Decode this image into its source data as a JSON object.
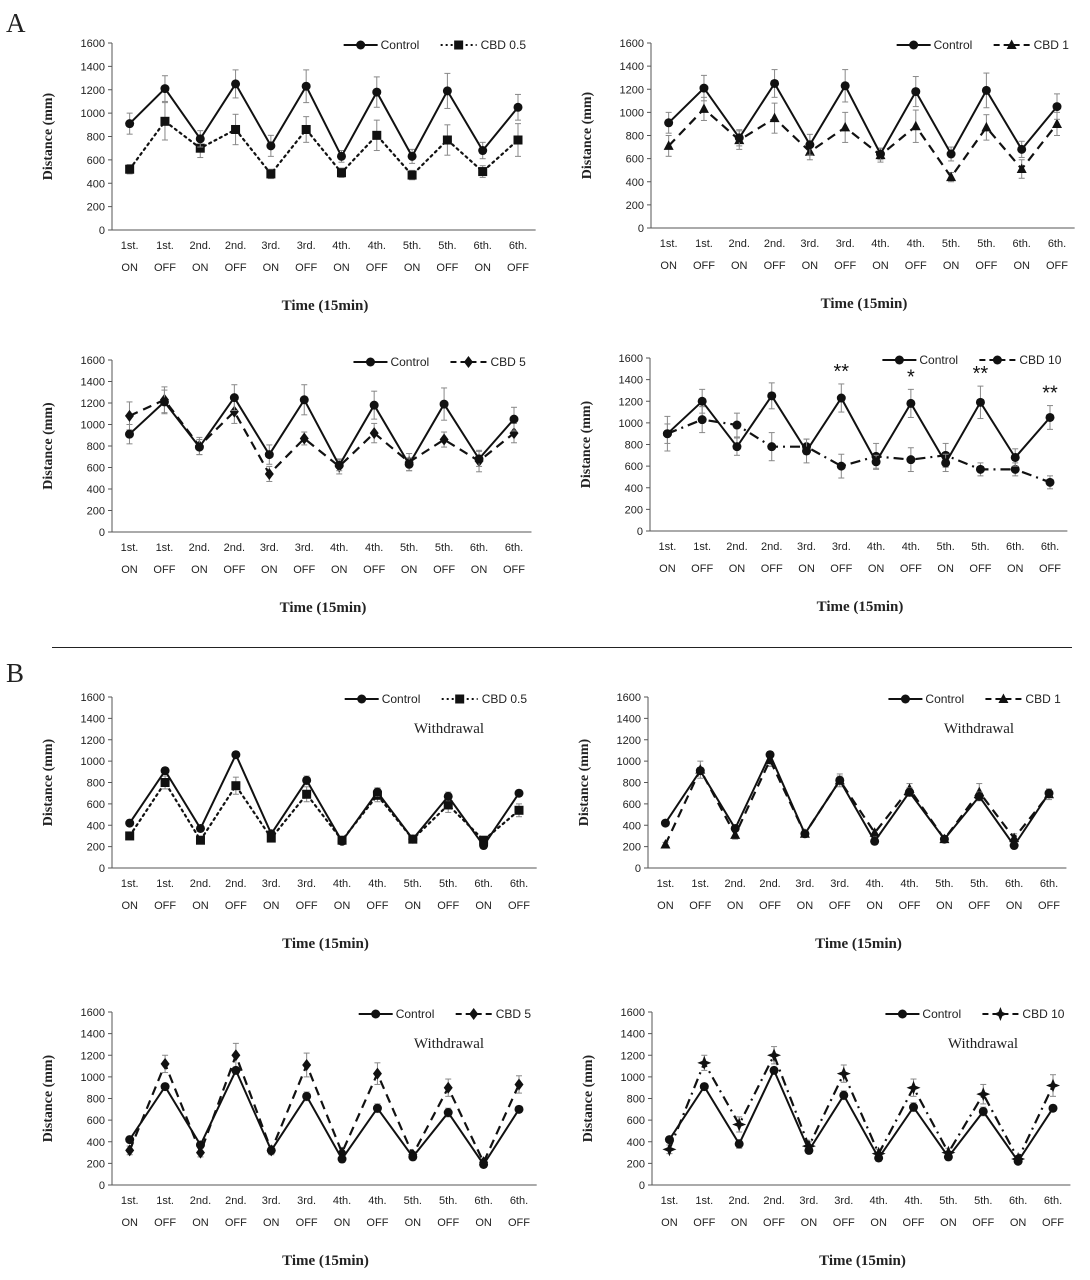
{
  "panels": {
    "A": "A",
    "B": "B"
  },
  "common": {
    "ylabel": "Distance (mm)",
    "xlabel": "Time (15min)",
    "yticks": [
      "0",
      "200",
      "400",
      "600",
      "800",
      "1000",
      "1200",
      "1400",
      "1600"
    ],
    "xticks_top": [
      "1st.",
      "1st.",
      "2nd.",
      "2nd.",
      "3rd.",
      "3rd.",
      "4th.",
      "4th.",
      "5th.",
      "5th.",
      "6th.",
      "6th."
    ],
    "xticks_bottom": [
      "ON",
      "OFF",
      "ON",
      "OFF",
      "ON",
      "OFF",
      "ON",
      "OFF",
      "ON",
      "OFF",
      "ON",
      "OFF"
    ],
    "annotation_withdrawal": "Withdrawal"
  },
  "colors": {
    "line": "#111111",
    "axis": "#555555",
    "errorbar": "#888888"
  },
  "chart_data": [
    {
      "type": "line",
      "panel": "A",
      "annotation": "",
      "categories": [
        "1st. ON",
        "1st. OFF",
        "2nd. ON",
        "2nd. OFF",
        "3rd. ON",
        "3rd. OFF",
        "4th. ON",
        "4th. OFF",
        "5th. ON",
        "5th. OFF",
        "6th. ON",
        "6th. OFF"
      ],
      "ylim": [
        0,
        1600
      ],
      "ylabel": "Distance (mm)",
      "xlabel": "Time (15min)",
      "legend": "top-right",
      "series": [
        {
          "name": "Control",
          "style": "solid",
          "marker": "circle",
          "values": [
            910,
            1210,
            780,
            1250,
            720,
            1230,
            630,
            1180,
            630,
            1190,
            680,
            1050
          ],
          "errors": [
            90,
            110,
            70,
            120,
            90,
            140,
            50,
            130,
            60,
            150,
            70,
            110
          ]
        },
        {
          "name": "CBD 0.5",
          "style": "dotted",
          "marker": "square",
          "values": [
            520,
            930,
            700,
            860,
            480,
            860,
            490,
            810,
            470,
            770,
            500,
            770
          ],
          "errors": [
            40,
            160,
            80,
            130,
            40,
            110,
            40,
            130,
            40,
            130,
            50,
            140
          ]
        }
      ],
      "significance": []
    },
    {
      "type": "line",
      "panel": "A",
      "annotation": "",
      "categories": [
        "1st. ON",
        "1st. OFF",
        "2nd. ON",
        "2nd. OFF",
        "3rd. ON",
        "3rd. OFF",
        "4th. ON",
        "4th. OFF",
        "5th. ON",
        "5th. OFF",
        "6th. ON",
        "6th. OFF"
      ],
      "ylim": [
        0,
        1600
      ],
      "ylabel": "Distance (mm)",
      "xlabel": "Time (15min)",
      "legend": "top-right",
      "series": [
        {
          "name": "Control",
          "style": "solid",
          "marker": "circle",
          "values": [
            910,
            1210,
            780,
            1250,
            720,
            1230,
            640,
            1180,
            640,
            1190,
            680,
            1050
          ],
          "errors": [
            90,
            110,
            70,
            120,
            90,
            140,
            50,
            130,
            60,
            150,
            70,
            110
          ]
        },
        {
          "name": "CBD 1",
          "style": "dashed",
          "marker": "triangle",
          "values": [
            710,
            1030,
            760,
            950,
            660,
            870,
            630,
            880,
            440,
            870,
            510,
            900
          ],
          "errors": [
            90,
            100,
            80,
            130,
            70,
            130,
            60,
            140,
            40,
            110,
            80,
            100
          ]
        }
      ],
      "significance": []
    },
    {
      "type": "line",
      "panel": "A",
      "annotation": "",
      "categories": [
        "1st. ON",
        "1st. OFF",
        "2nd. ON",
        "2nd. OFF",
        "3rd. ON",
        "3rd. OFF",
        "4th. ON",
        "4th. OFF",
        "5th. ON",
        "5th. OFF",
        "6th. ON",
        "6th. OFF"
      ],
      "ylim": [
        0,
        1600
      ],
      "ylabel": "Distance (mm)",
      "xlabel": "Time (15min)",
      "legend": "top-right",
      "series": [
        {
          "name": "Control",
          "style": "solid",
          "marker": "circle",
          "values": [
            910,
            1210,
            790,
            1250,
            720,
            1230,
            620,
            1180,
            630,
            1190,
            680,
            1050
          ],
          "errors": [
            90,
            110,
            70,
            120,
            90,
            140,
            50,
            130,
            60,
            150,
            70,
            110
          ]
        },
        {
          "name": "CBD 5",
          "style": "dashed",
          "marker": "diamond",
          "values": [
            1080,
            1230,
            800,
            1120,
            540,
            870,
            610,
            920,
            650,
            860,
            660,
            920
          ],
          "errors": [
            130,
            120,
            80,
            110,
            70,
            60,
            70,
            90,
            80,
            70,
            100,
            90
          ]
        }
      ],
      "significance": []
    },
    {
      "type": "line",
      "panel": "A",
      "annotation": "",
      "categories": [
        "1st. ON",
        "1st. OFF",
        "2nd. ON",
        "2nd. OFF",
        "3rd. ON",
        "3rd. OFF",
        "4th. ON",
        "4th. OFF",
        "5th. ON",
        "5th. OFF",
        "6th. ON",
        "6th. OFF"
      ],
      "ylim": [
        0,
        1600
      ],
      "ylabel": "Distance (mm)",
      "xlabel": "Time (15min)",
      "legend": "top-right",
      "series": [
        {
          "name": "Control",
          "style": "solid",
          "marker": "circle",
          "values": [
            900,
            1200,
            780,
            1250,
            740,
            1230,
            640,
            1180,
            630,
            1190,
            680,
            1050
          ],
          "errors": [
            90,
            110,
            80,
            120,
            110,
            130,
            60,
            130,
            80,
            150,
            80,
            110
          ]
        },
        {
          "name": "CBD 10",
          "style": "dashdot",
          "marker": "circle",
          "values": [
            900,
            1030,
            980,
            780,
            780,
            600,
            690,
            660,
            700,
            570,
            570,
            450
          ],
          "errors": [
            160,
            120,
            110,
            130,
            70,
            110,
            120,
            110,
            110,
            60,
            60,
            60
          ]
        }
      ],
      "significance": [
        {
          "index": 5,
          "label": "**"
        },
        {
          "index": 7,
          "label": "*"
        },
        {
          "index": 9,
          "label": "**"
        },
        {
          "index": 11,
          "label": "**"
        }
      ]
    },
    {
      "type": "line",
      "panel": "B",
      "annotation": "Withdrawal",
      "categories": [
        "1st. ON",
        "1st. OFF",
        "2nd. ON",
        "2nd. OFF",
        "3rd. ON",
        "3rd. OFF",
        "4th. ON",
        "4th. OFF",
        "5th. ON",
        "5th. OFF",
        "6th. ON",
        "6th. OFF"
      ],
      "ylim": [
        0,
        1600
      ],
      "ylabel": "Distance (mm)",
      "xlabel": "Time (15min)",
      "legend": "top-right",
      "series": [
        {
          "name": "Control",
          "style": "solid",
          "marker": "circle",
          "values": [
            420,
            910,
            370,
            1060,
            320,
            820,
            250,
            710,
            270,
            670,
            210,
            700
          ],
          "errors": [
            20,
            30,
            20,
            30,
            20,
            40,
            30,
            40,
            20,
            40,
            20,
            30
          ]
        },
        {
          "name": "CBD 0.5",
          "style": "dotted",
          "marker": "square",
          "values": [
            300,
            800,
            260,
            770,
            280,
            690,
            260,
            680,
            270,
            590,
            260,
            540
          ],
          "errors": [
            20,
            60,
            20,
            80,
            30,
            70,
            20,
            60,
            20,
            70,
            20,
            60
          ]
        }
      ],
      "significance": []
    },
    {
      "type": "line",
      "panel": "B",
      "annotation": "Withdrawal",
      "categories": [
        "1st. ON",
        "1st. OFF",
        "2nd. ON",
        "2nd. OFF",
        "3rd. ON",
        "3rd. OFF",
        "4th. ON",
        "4th. OFF",
        "5th. ON",
        "5th. OFF",
        "6th. ON",
        "6th. OFF"
      ],
      "ylim": [
        0,
        1600
      ],
      "ylabel": "Distance (mm)",
      "xlabel": "Time (15min)",
      "legend": "top-right",
      "series": [
        {
          "name": "Control",
          "style": "solid",
          "marker": "circle",
          "values": [
            420,
            910,
            370,
            1060,
            320,
            820,
            250,
            710,
            270,
            670,
            210,
            700
          ],
          "errors": [
            20,
            30,
            20,
            30,
            20,
            40,
            30,
            40,
            20,
            40,
            20,
            30
          ]
        },
        {
          "name": "CBD 1",
          "style": "dashed",
          "marker": "triangle",
          "values": [
            220,
            920,
            310,
            1010,
            320,
            820,
            330,
            740,
            270,
            710,
            280,
            690
          ],
          "errors": [
            20,
            80,
            40,
            60,
            30,
            60,
            30,
            50,
            20,
            80,
            40,
            50
          ]
        }
      ],
      "significance": []
    },
    {
      "type": "line",
      "panel": "B",
      "annotation": "Withdrawal",
      "categories": [
        "1st. ON",
        "1st. OFF",
        "2nd. ON",
        "2nd. OFF",
        "3rd. ON",
        "3rd. OFF",
        "4th. ON",
        "4th. OFF",
        "5th. ON",
        "5th. OFF",
        "6th. ON",
        "6th. OFF"
      ],
      "ylim": [
        0,
        1600
      ],
      "ylabel": "Distance (mm)",
      "xlabel": "Time (15min)",
      "legend": "top-right",
      "series": [
        {
          "name": "Control",
          "style": "solid",
          "marker": "circle",
          "values": [
            420,
            910,
            370,
            1060,
            320,
            820,
            240,
            710,
            260,
            670,
            190,
            700
          ],
          "errors": [
            20,
            30,
            20,
            30,
            20,
            40,
            30,
            40,
            20,
            40,
            20,
            30
          ]
        },
        {
          "name": "CBD 5",
          "style": "dashed",
          "marker": "diamond",
          "values": [
            320,
            1120,
            300,
            1200,
            320,
            1110,
            300,
            1030,
            280,
            900,
            210,
            930
          ],
          "errors": [
            40,
            80,
            40,
            110,
            40,
            110,
            40,
            100,
            30,
            80,
            30,
            80
          ]
        }
      ],
      "significance": []
    },
    {
      "type": "line",
      "panel": "B",
      "annotation": "Withdrawal",
      "categories": [
        "1st. ON",
        "1st. OFF",
        "2nd. ON",
        "2nd. OFF",
        "3rd. ON",
        "3rd. OFF",
        "4th. ON",
        "4th. OFF",
        "5th. ON",
        "5th. OFF",
        "6th. ON",
        "6th. OFF"
      ],
      "ylim": [
        0,
        1600
      ],
      "ylabel": "Distance (mm)",
      "xlabel": "Time (15min)",
      "legend": "top-right",
      "series": [
        {
          "name": "Control",
          "style": "solid",
          "marker": "circle",
          "values": [
            420,
            910,
            380,
            1060,
            320,
            830,
            250,
            720,
            260,
            680,
            220,
            710
          ],
          "errors": [
            20,
            30,
            40,
            30,
            20,
            40,
            30,
            40,
            20,
            40,
            20,
            30
          ]
        },
        {
          "name": "CBD 10",
          "style": "dashdot",
          "marker": "cross",
          "values": [
            330,
            1130,
            560,
            1200,
            360,
            1030,
            290,
            900,
            300,
            840,
            240,
            920
          ],
          "errors": [
            40,
            70,
            70,
            80,
            40,
            80,
            40,
            80,
            40,
            90,
            30,
            100
          ]
        }
      ],
      "significance": []
    }
  ]
}
